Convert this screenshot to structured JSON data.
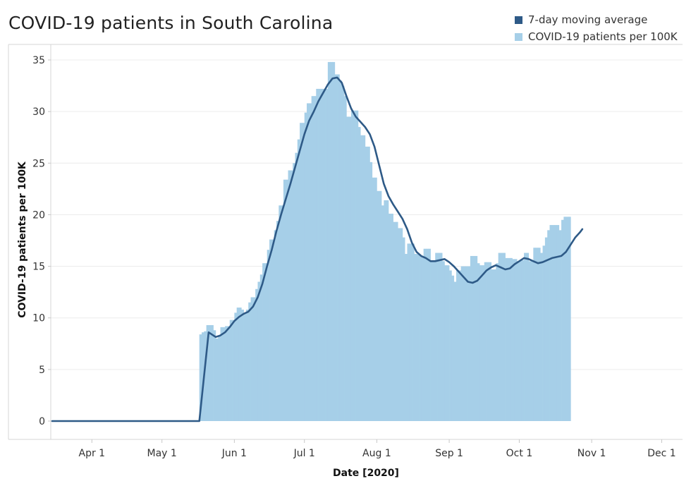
{
  "chart_data": {
    "type": "bar",
    "title": "COVID-19 patients in South Carolina",
    "xlabel": "Date [2020]",
    "ylabel": "COVID-19 patients per 100K",
    "ylim": [
      0,
      36
    ],
    "yticks": [
      0,
      5,
      10,
      15,
      20,
      25,
      30,
      35
    ],
    "x_range_days": [
      0,
      269
    ],
    "xticks": [
      {
        "label": "Apr 1",
        "day": 17
      },
      {
        "label": "May 1",
        "day": 47
      },
      {
        "label": "Jun 1",
        "day": 78
      },
      {
        "label": "Jul 1",
        "day": 108
      },
      {
        "label": "Aug 1",
        "day": 139
      },
      {
        "label": "Sep 1",
        "day": 170
      },
      {
        "label": "Oct 1",
        "day": 200
      },
      {
        "label": "Nov 1",
        "day": 231
      },
      {
        "label": "Dec 1",
        "day": 261
      }
    ],
    "grid": true,
    "legend_position": "top-right",
    "series": [
      {
        "name": "COVID-19 patients per 100K",
        "color": "#a6cfe8",
        "kind": "bar",
        "points": [
          [
            0,
            0
          ],
          [
            62,
            0
          ],
          [
            63,
            8.4
          ],
          [
            64,
            8.6
          ],
          [
            65,
            8.7
          ],
          [
            66,
            9.3
          ],
          [
            68,
            9.3
          ],
          [
            69,
            8.8
          ],
          [
            70,
            8.0
          ],
          [
            71,
            8.2
          ],
          [
            72,
            9.1
          ],
          [
            74,
            9.2
          ],
          [
            76,
            9.8
          ],
          [
            78,
            10.5
          ],
          [
            79,
            11.0
          ],
          [
            81,
            10.8
          ],
          [
            82,
            10.4
          ],
          [
            83,
            10.8
          ],
          [
            84,
            11.5
          ],
          [
            85,
            12.0
          ],
          [
            87,
            12.8
          ],
          [
            88,
            13.5
          ],
          [
            89,
            14.2
          ],
          [
            90,
            15.3
          ],
          [
            92,
            16.6
          ],
          [
            93,
            17.6
          ],
          [
            95,
            18.5
          ],
          [
            96,
            19.4
          ],
          [
            97,
            20.9
          ],
          [
            99,
            23.4
          ],
          [
            101,
            24.3
          ],
          [
            103,
            25.0
          ],
          [
            104,
            26.0
          ],
          [
            105,
            27.3
          ],
          [
            106,
            28.9
          ],
          [
            108,
            29.9
          ],
          [
            109,
            30.8
          ],
          [
            111,
            31.5
          ],
          [
            113,
            32.2
          ],
          [
            118,
            34.8
          ],
          [
            121,
            33.6
          ],
          [
            123,
            33.0
          ],
          [
            124,
            32.5
          ],
          [
            125,
            31.5
          ],
          [
            126,
            29.5
          ],
          [
            128,
            30.1
          ],
          [
            131,
            28.5
          ],
          [
            132,
            27.7
          ],
          [
            134,
            26.6
          ],
          [
            136,
            25.1
          ],
          [
            137,
            23.6
          ],
          [
            139,
            22.3
          ],
          [
            141,
            20.9
          ],
          [
            142,
            21.4
          ],
          [
            144,
            20.1
          ],
          [
            146,
            19.3
          ],
          [
            148,
            18.7
          ],
          [
            150,
            17.8
          ],
          [
            151,
            16.2
          ],
          [
            152,
            17.2
          ],
          [
            155,
            16.2
          ],
          [
            157,
            16.1
          ],
          [
            158,
            16.0
          ],
          [
            159,
            16.7
          ],
          [
            162,
            15.5
          ],
          [
            164,
            16.3
          ],
          [
            167,
            15.5
          ],
          [
            168,
            15.1
          ],
          [
            170,
            14.6
          ],
          [
            171,
            14.1
          ],
          [
            172,
            13.5
          ],
          [
            173,
            14.6
          ],
          [
            175,
            15.0
          ],
          [
            179,
            16.0
          ],
          [
            182,
            15.3
          ],
          [
            183,
            15.1
          ],
          [
            185,
            15.4
          ],
          [
            188,
            14.7
          ],
          [
            190,
            15.3
          ],
          [
            191,
            16.3
          ],
          [
            194,
            15.8
          ],
          [
            197,
            15.7
          ],
          [
            199,
            15.5
          ],
          [
            200,
            15.6
          ],
          [
            202,
            16.3
          ],
          [
            204,
            15.5
          ],
          [
            206,
            16.8
          ],
          [
            209,
            16.3
          ],
          [
            210,
            17.0
          ],
          [
            211,
            17.8
          ],
          [
            212,
            18.5
          ],
          [
            213,
            19.0
          ],
          [
            217,
            18.5
          ],
          [
            218,
            19.5
          ],
          [
            219,
            19.8
          ],
          [
            221,
            19.8
          ]
        ]
      },
      {
        "name": "7-day moving average",
        "color": "#2e5a87",
        "kind": "line",
        "points": [
          [
            0,
            0
          ],
          [
            63,
            0
          ],
          [
            67,
            8.6
          ],
          [
            69,
            8.3
          ],
          [
            70,
            8.15
          ],
          [
            72,
            8.3
          ],
          [
            74,
            8.6
          ],
          [
            76,
            9.1
          ],
          [
            78,
            9.7
          ],
          [
            80,
            10.1
          ],
          [
            82,
            10.4
          ],
          [
            84,
            10.6
          ],
          [
            86,
            11.1
          ],
          [
            88,
            12.0
          ],
          [
            90,
            13.3
          ],
          [
            92,
            15.0
          ],
          [
            94,
            16.6
          ],
          [
            96,
            18.4
          ],
          [
            98,
            20.0
          ],
          [
            100,
            21.5
          ],
          [
            102,
            23.0
          ],
          [
            104,
            24.6
          ],
          [
            106,
            26.2
          ],
          [
            108,
            27.8
          ],
          [
            110,
            29.1
          ],
          [
            112,
            30.0
          ],
          [
            114,
            31.0
          ],
          [
            116,
            31.8
          ],
          [
            118,
            32.6
          ],
          [
            120,
            33.2
          ],
          [
            122,
            33.3
          ],
          [
            124,
            32.8
          ],
          [
            126,
            31.5
          ],
          [
            128,
            30.3
          ],
          [
            130,
            29.5
          ],
          [
            132,
            29.0
          ],
          [
            134,
            28.5
          ],
          [
            136,
            27.8
          ],
          [
            138,
            26.6
          ],
          [
            140,
            24.8
          ],
          [
            142,
            23.0
          ],
          [
            144,
            21.8
          ],
          [
            146,
            21.0
          ],
          [
            148,
            20.3
          ],
          [
            150,
            19.6
          ],
          [
            152,
            18.6
          ],
          [
            154,
            17.3
          ],
          [
            156,
            16.4
          ],
          [
            158,
            16.0
          ],
          [
            160,
            15.8
          ],
          [
            162,
            15.5
          ],
          [
            164,
            15.5
          ],
          [
            166,
            15.6
          ],
          [
            168,
            15.7
          ],
          [
            170,
            15.4
          ],
          [
            172,
            15.0
          ],
          [
            174,
            14.5
          ],
          [
            176,
            14.0
          ],
          [
            178,
            13.5
          ],
          [
            180,
            13.4
          ],
          [
            182,
            13.6
          ],
          [
            184,
            14.1
          ],
          [
            186,
            14.6
          ],
          [
            188,
            14.9
          ],
          [
            190,
            15.1
          ],
          [
            192,
            14.9
          ],
          [
            194,
            14.7
          ],
          [
            196,
            14.8
          ],
          [
            198,
            15.2
          ],
          [
            200,
            15.5
          ],
          [
            202,
            15.8
          ],
          [
            204,
            15.7
          ],
          [
            206,
            15.5
          ],
          [
            208,
            15.3
          ],
          [
            210,
            15.4
          ],
          [
            212,
            15.6
          ],
          [
            214,
            15.8
          ],
          [
            216,
            15.9
          ],
          [
            218,
            16.0
          ],
          [
            220,
            16.4
          ],
          [
            222,
            17.1
          ],
          [
            224,
            17.8
          ],
          [
            226,
            18.3
          ],
          [
            227,
            18.6
          ]
        ]
      }
    ]
  },
  "legend": {
    "items": [
      {
        "label": "7-day moving average",
        "color": "#2e5a87"
      },
      {
        "label": "COVID-19 patients per 100K",
        "color": "#a6cfe8"
      }
    ]
  }
}
